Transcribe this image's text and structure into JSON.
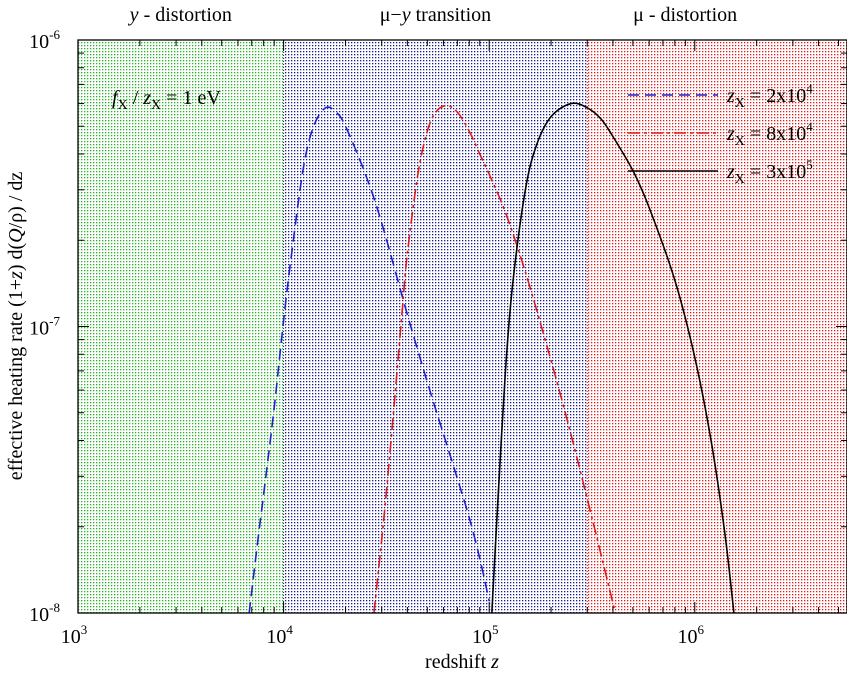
{
  "chart_data": {
    "type": "line",
    "xlabel": "redshift",
    "xlabel_var": "z",
    "ylabel": {
      "pre": "effective heating rate (1+",
      "z": "z",
      "mid": ") d(",
      "Q": "Q",
      "post": "/ρ) / dz"
    },
    "x_scale": "log",
    "y_scale": "log",
    "xlim": [
      1000,
      5500000
    ],
    "ylim": [
      1e-08,
      1e-06
    ],
    "x_ticks": [
      {
        "value": 1000,
        "base": "10",
        "exp": "3"
      },
      {
        "value": 10000,
        "base": "10",
        "exp": "4"
      },
      {
        "value": 100000,
        "base": "10",
        "exp": "5"
      },
      {
        "value": 1000000,
        "base": "10",
        "exp": "6"
      }
    ],
    "y_ticks": [
      {
        "value": 1e-08,
        "base": "10",
        "exp": "-8"
      },
      {
        "value": 1e-07,
        "base": "10",
        "exp": "-7"
      },
      {
        "value": 1e-06,
        "base": "10",
        "exp": "-6"
      }
    ],
    "regions": [
      {
        "name": "y-distortion",
        "x_from": 1000,
        "x_to": 10000,
        "color": "#1fb31f",
        "label_var": "y",
        "label_text": " - distortion"
      },
      {
        "name": "mu-y-transition",
        "x_from": 10000,
        "x_to": 300000,
        "color": "#1a1a8c",
        "label_var": "μ−y",
        "label_text": " transition"
      },
      {
        "name": "mu-distortion",
        "x_from": 300000,
        "x_to": 5500000,
        "color": "#e01818",
        "label_var": "",
        "label_text": "μ - distortion"
      }
    ],
    "annotation": {
      "f": "f",
      "sub1": "X",
      "slash": " / ",
      "z": "z",
      "sub2": "X",
      "value": " = 1 eV"
    },
    "series": [
      {
        "name_var": "z",
        "name_sub": "X",
        "name_eq": " = 2x10",
        "name_exp": "4",
        "color": "#1f1fcc",
        "dash": "11,6",
        "width": 1.6,
        "x": [
          6800,
          7500,
          8000,
          9000,
          10000,
          11000,
          12500,
          14000,
          16000,
          18000,
          20000,
          25000,
          30000,
          40000,
          50000,
          60000,
          70000,
          80000,
          90000,
          100000
        ],
        "y": [
          1e-08,
          1.8e-08,
          2.6e-08,
          5.2e-08,
          1.05e-07,
          1.85e-07,
          3.6e-07,
          5e-07,
          5.8e-07,
          5.6e-07,
          5e-07,
          3.4e-07,
          2.3e-07,
          1.1e-07,
          6.4e-08,
          4.2e-08,
          2.95e-08,
          2.15e-08,
          1.55e-08,
          1.1e-08
        ]
      },
      {
        "name_var": "z",
        "name_sub": "X",
        "name_eq": " = 8x10",
        "name_exp": "4",
        "color": "#e01818",
        "dash": "12,4,3,4",
        "width": 1.6,
        "x": [
          27500,
          30000,
          32000,
          35000,
          38000,
          40000,
          45000,
          50000,
          55000,
          62000,
          70000,
          80000,
          90000,
          100000,
          120000,
          150000,
          200000,
          250000,
          300000,
          350000,
          400000,
          410000
        ],
        "y": [
          1e-08,
          1.8e-08,
          2.9e-08,
          6e-08,
          1.2e-07,
          1.8e-07,
          3.4e-07,
          4.8e-07,
          5.6e-07,
          5.9e-07,
          5.6e-07,
          4.8e-07,
          4e-07,
          3.4e-07,
          2.5e-07,
          1.55e-07,
          7.6e-08,
          4.2e-08,
          2.5e-08,
          1.6e-08,
          1.08e-08,
          1e-08
        ]
      },
      {
        "name_var": "z",
        "name_sub": "X",
        "name_eq": " = 3x10",
        "name_exp": "5",
        "color": "#000000",
        "dash": "",
        "width": 1.6,
        "x": [
          103000,
          105000,
          110000,
          120000,
          130000,
          150000,
          170000,
          200000,
          250000,
          300000,
          350000,
          400000,
          500000,
          600000,
          800000,
          1000000,
          1200000,
          1400000,
          1550000
        ],
        "y": [
          1e-08,
          1.3e-08,
          2.4e-08,
          7e-08,
          1.4e-07,
          3e-07,
          4.3e-07,
          5.4e-07,
          6e-07,
          5.8e-07,
          5.3e-07,
          4.6e-07,
          3.5e-07,
          2.6e-07,
          1.45e-07,
          7.8e-08,
          4e-08,
          1.9e-08,
          1e-08
        ]
      }
    ],
    "legend_position": "top-right",
    "grid": false
  }
}
